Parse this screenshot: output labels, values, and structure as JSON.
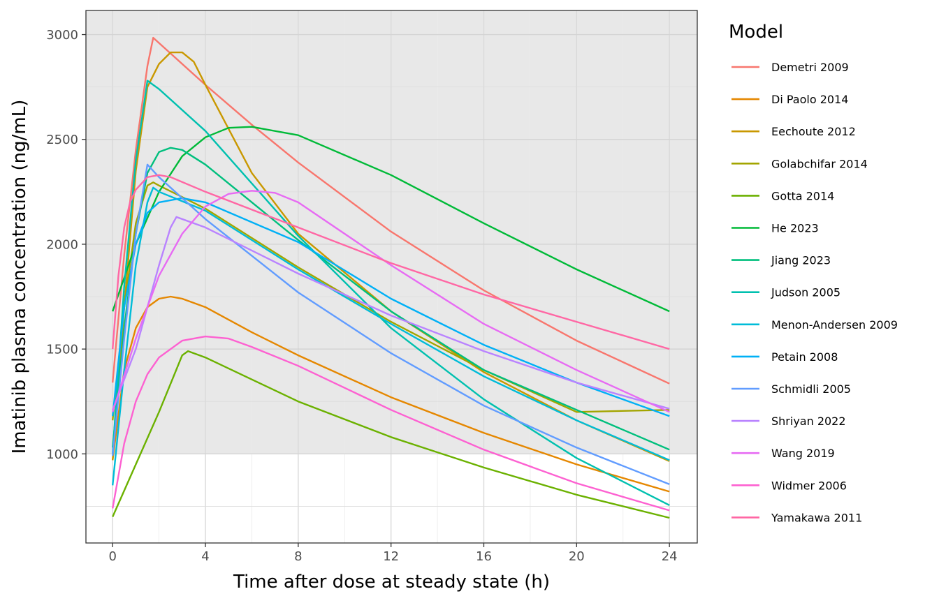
{
  "chart_data": {
    "type": "line",
    "title": "",
    "xlabel": "Time after dose at steady state (h)",
    "ylabel": "Imatinib plasma concentration (ng/mL)",
    "xlim": [
      -1.15,
      25.2
    ],
    "ylim": [
      575,
      3115
    ],
    "x_ticks": [
      0,
      4,
      8,
      12,
      16,
      20,
      24
    ],
    "x_tick_labels": [
      "0",
      "4",
      "8",
      "12",
      "16",
      "20",
      "24"
    ],
    "y_ticks": [
      1000,
      1500,
      2000,
      2500,
      3000
    ],
    "y_tick_labels": [
      "1000",
      "1500",
      "2000",
      "2500",
      "3000"
    ],
    "grid": true,
    "shaded_band": {
      "y_from": 1000,
      "y_to": 3115,
      "color": "#e8e8e8"
    },
    "legend": {
      "title": "Model",
      "position": "right"
    },
    "series": [
      {
        "name": "Demetri 2009",
        "color": "#F8766D",
        "points": [
          [
            0,
            1340
          ],
          [
            0.5,
            1950
          ],
          [
            1,
            2450
          ],
          [
            1.5,
            2850
          ],
          [
            1.75,
            2985
          ],
          [
            2,
            2960
          ],
          [
            4,
            2760
          ],
          [
            6,
            2570
          ],
          [
            8,
            2390
          ],
          [
            12,
            2060
          ],
          [
            16,
            1780
          ],
          [
            20,
            1540
          ],
          [
            24,
            1335
          ]
        ]
      },
      {
        "name": "Di Paolo 2014",
        "color": "#E58700",
        "points": [
          [
            0,
            970
          ],
          [
            0.5,
            1400
          ],
          [
            1,
            1600
          ],
          [
            1.5,
            1700
          ],
          [
            2,
            1740
          ],
          [
            2.5,
            1750
          ],
          [
            3,
            1740
          ],
          [
            4,
            1700
          ],
          [
            6,
            1580
          ],
          [
            8,
            1470
          ],
          [
            12,
            1270
          ],
          [
            16,
            1100
          ],
          [
            20,
            950
          ],
          [
            24,
            820
          ]
        ]
      },
      {
        "name": "Eechoute 2012",
        "color": "#C99800",
        "points": [
          [
            0,
            970
          ],
          [
            0.5,
            1700
          ],
          [
            1,
            2350
          ],
          [
            1.5,
            2750
          ],
          [
            2,
            2860
          ],
          [
            2.5,
            2915
          ],
          [
            3,
            2915
          ],
          [
            3.5,
            2870
          ],
          [
            4,
            2760
          ],
          [
            5,
            2550
          ],
          [
            6,
            2340
          ],
          [
            8,
            2050
          ],
          [
            12,
            1680
          ],
          [
            16,
            1390
          ],
          [
            20,
            1160
          ],
          [
            24,
            965
          ]
        ]
      },
      {
        "name": "Golabchifar 2014",
        "color": "#A3A500",
        "points": [
          [
            0,
            1160
          ],
          [
            0.5,
            1700
          ],
          [
            1,
            2100
          ],
          [
            1.5,
            2280
          ],
          [
            1.75,
            2295
          ],
          [
            2,
            2280
          ],
          [
            4,
            2170
          ],
          [
            8,
            1890
          ],
          [
            12,
            1630
          ],
          [
            16,
            1400
          ],
          [
            20,
            1200
          ],
          [
            24,
            1210
          ]
        ]
      },
      {
        "name": "Gotta 2014",
        "color": "#6BB100",
        "points": [
          [
            0,
            700
          ],
          [
            1,
            950
          ],
          [
            2,
            1200
          ],
          [
            3,
            1470
          ],
          [
            3.25,
            1490
          ],
          [
            4,
            1460
          ],
          [
            8,
            1250
          ],
          [
            12,
            1080
          ],
          [
            16,
            935
          ],
          [
            20,
            805
          ],
          [
            24,
            695
          ]
        ]
      },
      {
        "name": "He 2023",
        "color": "#00BA38",
        "points": [
          [
            0,
            1680
          ],
          [
            1,
            2000
          ],
          [
            2,
            2250
          ],
          [
            3,
            2420
          ],
          [
            4,
            2510
          ],
          [
            5,
            2555
          ],
          [
            6,
            2560
          ],
          [
            8,
            2520
          ],
          [
            12,
            2330
          ],
          [
            16,
            2100
          ],
          [
            20,
            1880
          ],
          [
            24,
            1680
          ]
        ]
      },
      {
        "name": "Jiang 2023",
        "color": "#00BF7D",
        "points": [
          [
            0,
            1030
          ],
          [
            0.5,
            1600
          ],
          [
            1,
            2050
          ],
          [
            1.5,
            2340
          ],
          [
            2,
            2440
          ],
          [
            2.5,
            2460
          ],
          [
            3,
            2450
          ],
          [
            4,
            2380
          ],
          [
            8,
            2020
          ],
          [
            12,
            1680
          ],
          [
            16,
            1400
          ],
          [
            20,
            1210
          ],
          [
            24,
            1020
          ]
        ]
      },
      {
        "name": "Judson 2005",
        "color": "#00C0AF",
        "points": [
          [
            0,
            1000
          ],
          [
            0.5,
            1800
          ],
          [
            1,
            2400
          ],
          [
            1.5,
            2780
          ],
          [
            2,
            2740
          ],
          [
            4,
            2540
          ],
          [
            8,
            2040
          ],
          [
            12,
            1600
          ],
          [
            16,
            1260
          ],
          [
            20,
            980
          ],
          [
            24,
            755
          ]
        ]
      },
      {
        "name": "Menon-Andersen 2009",
        "color": "#00BCD8",
        "points": [
          [
            0,
            850
          ],
          [
            0.5,
            1400
          ],
          [
            1,
            1900
          ],
          [
            1.5,
            2200
          ],
          [
            1.75,
            2270
          ],
          [
            2,
            2250
          ],
          [
            4,
            2160
          ],
          [
            8,
            1880
          ],
          [
            12,
            1620
          ],
          [
            16,
            1370
          ],
          [
            20,
            1160
          ],
          [
            24,
            970
          ]
        ]
      },
      {
        "name": "Petain 2008",
        "color": "#00B0F6",
        "points": [
          [
            0,
            1180
          ],
          [
            0.5,
            1700
          ],
          [
            1,
            2000
          ],
          [
            1.5,
            2150
          ],
          [
            2,
            2200
          ],
          [
            3,
            2220
          ],
          [
            4,
            2200
          ],
          [
            8,
            2010
          ],
          [
            12,
            1740
          ],
          [
            16,
            1520
          ],
          [
            20,
            1340
          ],
          [
            24,
            1180
          ]
        ]
      },
      {
        "name": "Schmidli 2005",
        "color": "#619CFF",
        "points": [
          [
            0,
            990
          ],
          [
            0.5,
            1550
          ],
          [
            1,
            2050
          ],
          [
            1.5,
            2380
          ],
          [
            2,
            2320
          ],
          [
            4,
            2120
          ],
          [
            8,
            1770
          ],
          [
            12,
            1480
          ],
          [
            16,
            1230
          ],
          [
            20,
            1030
          ],
          [
            24,
            855
          ]
        ]
      },
      {
        "name": "Shriyan 2022",
        "color": "#B983FF",
        "points": [
          [
            0,
            1210
          ],
          [
            1,
            1500
          ],
          [
            2,
            1900
          ],
          [
            2.5,
            2080
          ],
          [
            2.75,
            2130
          ],
          [
            4,
            2080
          ],
          [
            8,
            1860
          ],
          [
            12,
            1660
          ],
          [
            16,
            1490
          ],
          [
            20,
            1340
          ],
          [
            24,
            1215
          ]
        ]
      },
      {
        "name": "Wang 2019",
        "color": "#E76BF3",
        "points": [
          [
            0,
            1200
          ],
          [
            1,
            1550
          ],
          [
            2,
            1850
          ],
          [
            3,
            2050
          ],
          [
            4,
            2180
          ],
          [
            5,
            2240
          ],
          [
            6,
            2255
          ],
          [
            7,
            2245
          ],
          [
            8,
            2200
          ],
          [
            12,
            1900
          ],
          [
            16,
            1620
          ],
          [
            20,
            1400
          ],
          [
            24,
            1200
          ]
        ]
      },
      {
        "name": "Widmer 2006",
        "color": "#FD61D1",
        "points": [
          [
            0,
            740
          ],
          [
            0.5,
            1050
          ],
          [
            1,
            1250
          ],
          [
            1.5,
            1380
          ],
          [
            2,
            1460
          ],
          [
            3,
            1540
          ],
          [
            4,
            1560
          ],
          [
            5,
            1550
          ],
          [
            6,
            1510
          ],
          [
            8,
            1420
          ],
          [
            12,
            1210
          ],
          [
            16,
            1020
          ],
          [
            20,
            860
          ],
          [
            24,
            730
          ]
        ]
      },
      {
        "name": "Yamakawa 2011",
        "color": "#FF67A4",
        "points": [
          [
            0,
            1500
          ],
          [
            0.25,
            1850
          ],
          [
            0.5,
            2080
          ],
          [
            0.75,
            2200
          ],
          [
            1,
            2260
          ],
          [
            1.5,
            2320
          ],
          [
            2,
            2330
          ],
          [
            2.5,
            2320
          ],
          [
            4,
            2250
          ],
          [
            8,
            2080
          ],
          [
            12,
            1910
          ],
          [
            16,
            1760
          ],
          [
            20,
            1630
          ],
          [
            24,
            1500
          ]
        ]
      }
    ]
  }
}
